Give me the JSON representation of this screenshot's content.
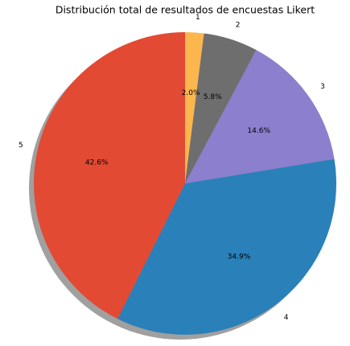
{
  "chart_data": {
    "type": "pie",
    "title": "Distribución total de resultados de encuestas Likert",
    "categories": [
      "1",
      "2",
      "3",
      "4",
      "5"
    ],
    "values": [
      2.0,
      5.8,
      14.6,
      34.9,
      42.6
    ],
    "value_labels": [
      "2.0%",
      "5.8%",
      "14.6%",
      "34.9%",
      "42.6%"
    ],
    "colors": [
      "#fbb64e",
      "#6e6e6e",
      "#8b7fce",
      "#2a80b9",
      "#e24a33"
    ],
    "shadow": true
  }
}
